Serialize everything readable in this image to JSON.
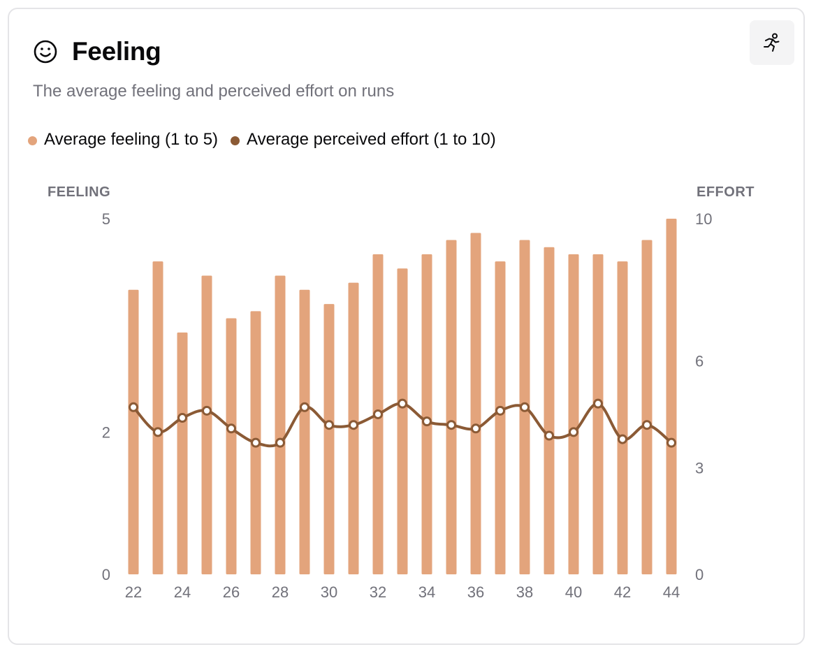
{
  "card": {
    "title": "Feeling",
    "subtitle": "The average feeling and perceived effort on runs",
    "title_icon": "smiley-face-icon",
    "action_icon": "running-person-icon"
  },
  "colors": {
    "bar": "#e3a47c",
    "line": "#8b5a35",
    "axis_text": "#71717a"
  },
  "chart_data": {
    "type": "bar",
    "x": [
      22,
      23,
      24,
      25,
      26,
      27,
      28,
      29,
      30,
      31,
      32,
      33,
      34,
      35,
      36,
      37,
      38,
      39,
      40,
      41,
      42,
      43,
      44
    ],
    "x_tick_labels": [
      "22",
      "24",
      "26",
      "28",
      "30",
      "32",
      "34",
      "36",
      "38",
      "40",
      "42",
      "44"
    ],
    "series": [
      {
        "name": "Average feeling (1 to 5)",
        "type": "bar",
        "axis": "left",
        "values": [
          4.0,
          4.4,
          3.4,
          4.2,
          3.6,
          3.7,
          4.2,
          4.0,
          3.8,
          4.1,
          4.5,
          4.3,
          4.5,
          4.7,
          4.8,
          4.4,
          4.7,
          4.6,
          4.5,
          4.5,
          4.4,
          4.7,
          5.0
        ]
      },
      {
        "name": "Average perceived effort (1 to 10)",
        "type": "line",
        "axis": "right",
        "values": [
          4.7,
          4.0,
          4.4,
          4.6,
          4.1,
          3.7,
          3.7,
          4.7,
          4.2,
          4.2,
          4.5,
          4.8,
          4.3,
          4.2,
          4.1,
          4.6,
          4.7,
          3.9,
          4.0,
          4.8,
          3.8,
          4.2,
          3.7
        ]
      }
    ],
    "left_axis": {
      "label": "FEELING",
      "range": [
        0,
        5
      ],
      "ticks": [
        "0",
        "2",
        "5"
      ]
    },
    "right_axis": {
      "label": "EFFORT",
      "range": [
        0,
        10
      ],
      "ticks": [
        "0",
        "3",
        "6",
        "10"
      ]
    },
    "grid": false,
    "legend_position": "top-left"
  }
}
